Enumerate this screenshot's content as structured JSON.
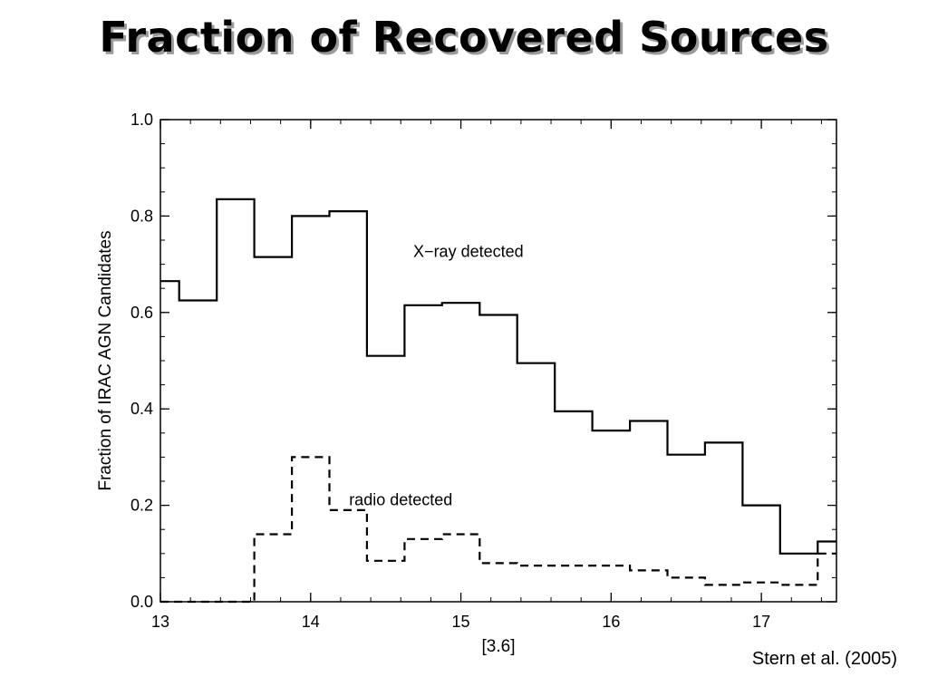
{
  "slide": {
    "title": "Fraction of Recovered Sources",
    "citation": "Stern et al. (2005)"
  },
  "chart_data": {
    "type": "line",
    "step": true,
    "title": "",
    "xlabel": "[3.6]",
    "ylabel": "Fraction of IRAC AGN Candidates",
    "xlim": [
      13,
      17.5
    ],
    "ylim": [
      0,
      1.0
    ],
    "xticks": [
      "13",
      "14",
      "15",
      "16",
      "17"
    ],
    "yticks": [
      "0.0",
      "0.2",
      "0.4",
      "0.6",
      "0.8",
      "1.0"
    ],
    "bin_edges": [
      13.0,
      13.125,
      13.375,
      13.625,
      13.875,
      14.125,
      14.375,
      14.625,
      14.875,
      15.125,
      15.375,
      15.625,
      15.875,
      16.125,
      16.375,
      16.625,
      16.875,
      17.125,
      17.375,
      17.5
    ],
    "series": [
      {
        "name": "X−ray detected",
        "style": "solid",
        "values": [
          0.665,
          0.625,
          0.835,
          0.715,
          0.8,
          0.81,
          0.51,
          0.615,
          0.62,
          0.595,
          0.495,
          0.395,
          0.355,
          0.375,
          0.305,
          0.33,
          0.2,
          0.1,
          0.125
        ]
      },
      {
        "name": "radio detected",
        "style": "dashed",
        "values": [
          0.0,
          0.0,
          0.0,
          0.14,
          0.3,
          0.19,
          0.085,
          0.13,
          0.14,
          0.08,
          0.075,
          0.075,
          0.075,
          0.065,
          0.05,
          0.035,
          0.04,
          0.035,
          0.1
        ]
      }
    ],
    "annotations": [
      {
        "text": "X−ray detected",
        "x": 15.05,
        "y": 0.715
      },
      {
        "text": "radio detected",
        "x": 14.6,
        "y": 0.2
      }
    ]
  }
}
